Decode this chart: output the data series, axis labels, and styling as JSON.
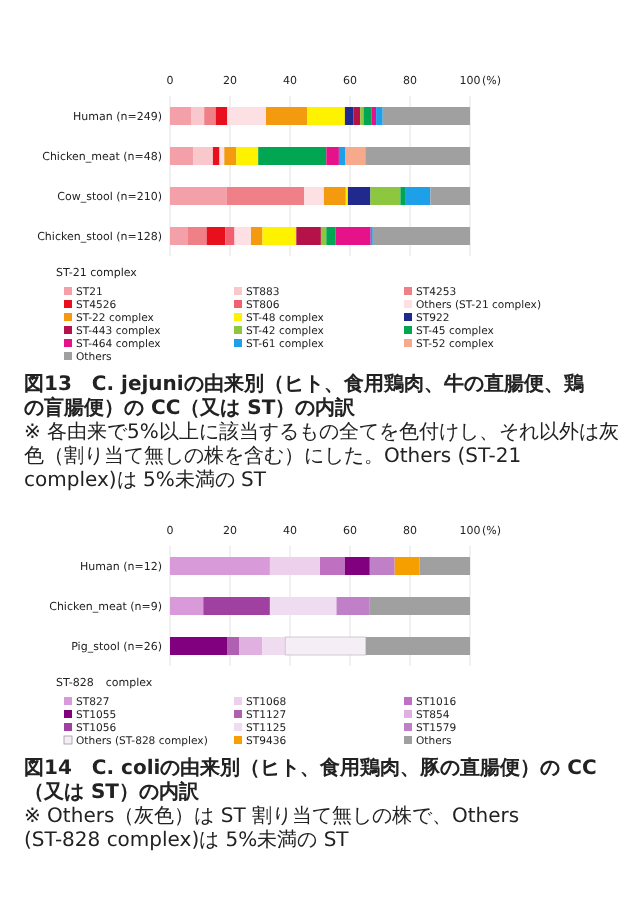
{
  "chart_data": [
    {
      "type": "bar",
      "orientation": "horizontal",
      "stacked": true,
      "categories": [
        "Human (n=249)",
        "Chicken_meat (n=48)",
        "Cow_stool (n=210)",
        "Chicken_stool (n=128)"
      ],
      "xlim": [
        0,
        100
      ],
      "xticks": [
        0,
        20,
        40,
        60,
        80,
        100
      ],
      "xlabel": "(%)",
      "grid": "x",
      "legend": "bottom",
      "legend_title": "ST-21 complex",
      "title": "図13　C. jejuniの由来別（ヒト、食用鶏肉、牛の直腸便、鶏の盲腸便）の CC（又は ST）の内訳",
      "annotations": [
        "※ 各由来で5%以上に該当するもの全てを色付けし、それ以外は灰色（割り当て無しの株を含む）にした。Others (ST-21 complex)は 5%未満の ST"
      ],
      "series": [
        {
          "name": "ST21",
          "color": "#f4a0a8",
          "values": [
            7,
            7.7,
            18.8,
            6
          ]
        },
        {
          "name": "ST883",
          "color": "#f8c8cc",
          "values": [
            4.4,
            6.6,
            null,
            null
          ]
        },
        {
          "name": "ST4253",
          "color": "#f08088",
          "values": [
            3.8,
            null,
            25.9,
            6.2
          ]
        },
        {
          "name": "ST4526",
          "color": "#e8101c",
          "values": [
            3.9,
            2.2,
            null,
            6.2
          ]
        },
        {
          "name": "ST806",
          "color": "#f06070",
          "values": [
            null,
            null,
            null,
            3.1
          ]
        },
        {
          "name": "Others (ST-21 complex)",
          "color": "#fce0e4",
          "values": [
            12.9,
            1.6,
            6.6,
            5.5
          ]
        },
        {
          "name": "ST-22 complex",
          "color": "#f39a0f",
          "values": [
            13.7,
            4,
            7.3,
            3.8
          ]
        },
        {
          "name": "ST-48 complex",
          "color": "#fff200",
          "values": [
            12.6,
            7.3,
            0.7,
            11.3
          ]
        },
        {
          "name": "ST922",
          "color": "#1f2a8c",
          "values": [
            2.9,
            null,
            7.5,
            null
          ]
        },
        {
          "name": "ST-443 complex",
          "color": "#b5124a",
          "values": [
            2.2,
            null,
            null,
            8.2
          ]
        },
        {
          "name": "ST-42 complex",
          "color": "#8dc63f",
          "values": [
            1.1,
            null,
            10,
            1.8
          ]
        },
        {
          "name": "ST-45 complex",
          "color": "#00a651",
          "values": [
            2.6,
            22.7,
            1.8,
            3.1
          ]
        },
        {
          "name": "ST-464 complex",
          "color": "#e5128a",
          "values": [
            1.6,
            4.2,
            null,
            11.7
          ]
        },
        {
          "name": "ST-61 complex",
          "color": "#1ea0e8",
          "values": [
            2.2,
            2.2,
            8.2,
            0.7
          ]
        },
        {
          "name": "ST-52 complex",
          "color": "#f7a98b",
          "values": [
            null,
            6.6,
            null,
            null
          ]
        },
        {
          "name": "Others",
          "color": "#a0a0a0",
          "values": [
            29.1,
            34.9,
            13.2,
            32.4
          ]
        }
      ]
    },
    {
      "type": "bar",
      "orientation": "horizontal",
      "stacked": true,
      "categories": [
        "Human (n=12)",
        "Chicken_meat (n=9)",
        "Pig_stool (n=26)"
      ],
      "xlim": [
        0,
        100
      ],
      "xticks": [
        0,
        20,
        40,
        60,
        80,
        100
      ],
      "xlabel": "(%)",
      "grid": "x",
      "legend": "bottom",
      "legend_title": "ST-828　complex",
      "title": "図14　C. coliの由来別（ヒト、食用鶏肉、豚の直腸便）の CC（又は ST）の内訳",
      "annotations": [
        "※ Others（灰色）は ST 割り当て無しの株で、Others (ST-828 complex)は 5%未満の ST"
      ],
      "series": [
        {
          "name": "ST827",
          "color": "#d89ad8",
          "values": [
            33.3,
            11.1,
            null
          ]
        },
        {
          "name": "ST1068",
          "color": "#ecd0ec",
          "values": [
            16.7,
            null,
            null
          ]
        },
        {
          "name": "ST1016",
          "color": "#c070c0",
          "values": [
            8.3,
            null,
            null
          ]
        },
        {
          "name": "ST1055",
          "color": "#800080",
          "values": [
            8.3,
            null,
            19.2
          ]
        },
        {
          "name": "ST1127",
          "color": "#b060b0",
          "values": [
            null,
            null,
            3.8
          ]
        },
        {
          "name": "ST854",
          "color": "#e0b0e0",
          "values": [
            null,
            null,
            7.7
          ]
        },
        {
          "name": "ST1056",
          "color": "#a040a0",
          "values": [
            null,
            22.2,
            null
          ]
        },
        {
          "name": "ST1125",
          "color": "#f0dcf0",
          "values": [
            null,
            22.2,
            7.7
          ]
        },
        {
          "name": "ST1579",
          "color": "#c080c8",
          "values": [
            8.3,
            11.1,
            null
          ]
        },
        {
          "name": "Others (ST-828 complex)",
          "color": "#f6eef6",
          "values": [
            null,
            null,
            26.9
          ]
        },
        {
          "name": "ST9436",
          "color": "#f5a000",
          "values": [
            8.3,
            null,
            null
          ]
        },
        {
          "name": "Others",
          "color": "#a0a0a0",
          "values": [
            16.8,
            33.4,
            34.7
          ]
        }
      ]
    }
  ]
}
